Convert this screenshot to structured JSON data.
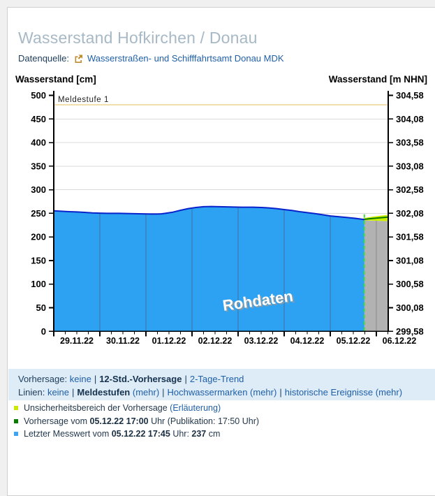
{
  "header": {
    "title": "Wasserstand Hofkirchen / Donau",
    "datasource_label": "Datenquelle:",
    "datasource_link": "Wasserstraßen- und Schifffahrtsamt Donau MDK"
  },
  "controls": {
    "forecast_row": {
      "label": "Vorhersage:",
      "opt_none": "keine",
      "opt_12h": "12-Std.-Vorhersage",
      "opt_trend": "2-Tage-Trend"
    },
    "lines_row": {
      "label": "Linien:",
      "opt_none": "keine",
      "opt_melde": "Meldestufen",
      "more1": "(mehr)",
      "opt_hwm": "Hochwassermarken",
      "more2": "(mehr)",
      "opt_hist": "historische Ereignisse",
      "more3": "(mehr)"
    }
  },
  "legend": [
    {
      "color": "#cce800",
      "segments": [
        {
          "t": "Unsicherheitsbereich der Vorhersage "
        },
        {
          "t": "(Erläuterung)",
          "link": true
        }
      ]
    },
    {
      "color": "#0b7a00",
      "segments": [
        {
          "t": "Vorhersage vom "
        },
        {
          "t": "05.12.22 17:00",
          "bold": true
        },
        {
          "t": " Uhr (Publikation: 17:50 Uhr)"
        }
      ]
    },
    {
      "color": "#3fa5f0",
      "segments": [
        {
          "t": "Letzter Messwert vom "
        },
        {
          "t": "05.12.22 17:45",
          "bold": true
        },
        {
          "t": " Uhr: "
        },
        {
          "t": "237",
          "bold": true
        },
        {
          "t": " cm"
        }
      ]
    }
  ],
  "chart_data": {
    "type": "area",
    "title_left_axis": "Wasserstand [cm]",
    "title_right_axis": "Wasserstand [m NHN]",
    "watermark": "Rohdaten",
    "x_unit": "hours since 29.11.22 00:00",
    "x_range_hours": [
      0,
      174.2
    ],
    "ylim_cm": [
      0,
      500
    ],
    "grid": true,
    "threshold": {
      "cm": 480,
      "label": "Meldestufe 1",
      "color": "#e3c05a"
    },
    "y_ticks": [
      {
        "cm": 500,
        "left": "500",
        "right": "304,58"
      },
      {
        "cm": 450,
        "left": "450",
        "right": "304,08"
      },
      {
        "cm": 400,
        "left": "400",
        "right": "303,58"
      },
      {
        "cm": 350,
        "left": "350",
        "right": "303,08"
      },
      {
        "cm": 300,
        "left": "300",
        "right": "302,58"
      },
      {
        "cm": 250,
        "left": "250",
        "right": "302,08"
      },
      {
        "cm": 200,
        "left": "200",
        "right": "301,58"
      },
      {
        "cm": 150,
        "left": "150",
        "right": "301,08"
      },
      {
        "cm": 100,
        "left": "100",
        "right": "300,58"
      },
      {
        "cm": 50,
        "left": "50",
        "right": "300,08"
      },
      {
        "cm": 0,
        "left": "0",
        "right": "299,58"
      }
    ],
    "x_labels": [
      {
        "t": 12,
        "label": "29.11.22"
      },
      {
        "t": 36,
        "label": "30.11.22"
      },
      {
        "t": 60,
        "label": "01.12.22"
      },
      {
        "t": 84,
        "label": "02.12.22"
      },
      {
        "t": 108,
        "label": "03.12.22"
      },
      {
        "t": 132,
        "label": "04.12.22"
      },
      {
        "t": 156,
        "label": "05.12.22"
      },
      {
        "t": 180,
        "label": "06.12.22"
      }
    ],
    "series": [
      {
        "name": "measured",
        "color_line": "#0822cc",
        "color_fill": "#2ea2f2",
        "points": [
          [
            0,
            255.5
          ],
          [
            4,
            254.5
          ],
          [
            8,
            253.5
          ],
          [
            12,
            253
          ],
          [
            16,
            252
          ],
          [
            20,
            251
          ],
          [
            24,
            250.5
          ],
          [
            28,
            250
          ],
          [
            34,
            250
          ],
          [
            40,
            249.5
          ],
          [
            46,
            249
          ],
          [
            50,
            248.5
          ],
          [
            54,
            248.5
          ],
          [
            56,
            249
          ],
          [
            58,
            250
          ],
          [
            62,
            252.5
          ],
          [
            66,
            256.5
          ],
          [
            70,
            260
          ],
          [
            74,
            262.5
          ],
          [
            78,
            264
          ],
          [
            82,
            264.5
          ],
          [
            86,
            264
          ],
          [
            92,
            263.5
          ],
          [
            98,
            263
          ],
          [
            104,
            263
          ],
          [
            108,
            262.5
          ],
          [
            112,
            261.5
          ],
          [
            116,
            260
          ],
          [
            120,
            258
          ],
          [
            124,
            256
          ],
          [
            128,
            253.5
          ],
          [
            132,
            251.5
          ],
          [
            136,
            249.5
          ],
          [
            140,
            247
          ],
          [
            144,
            244.5
          ],
          [
            148,
            243
          ],
          [
            152,
            241.5
          ],
          [
            156,
            240
          ],
          [
            159,
            238.5
          ],
          [
            161.75,
            237
          ]
        ]
      },
      {
        "name": "forecast",
        "color_line": "#0b7a00",
        "color_fill": "#b2b2b2",
        "points": [
          [
            161,
            237
          ],
          [
            164,
            238.5
          ],
          [
            168,
            240
          ],
          [
            171,
            241
          ],
          [
            174.2,
            242
          ]
        ]
      },
      {
        "name": "uncertainty_band",
        "color_fill": "#ccf000",
        "upper": [
          [
            161,
            239
          ],
          [
            163,
            241
          ],
          [
            166,
            243
          ],
          [
            170,
            245
          ],
          [
            174.2,
            247
          ]
        ],
        "lower": [
          [
            161,
            235.5
          ],
          [
            166,
            234.5
          ],
          [
            174.2,
            233.5
          ]
        ]
      }
    ],
    "now_line": {
      "t": 161.75,
      "color": "#41e03c"
    },
    "day_gridlines_t": [
      24,
      48,
      72,
      96,
      120,
      144,
      168
    ]
  }
}
